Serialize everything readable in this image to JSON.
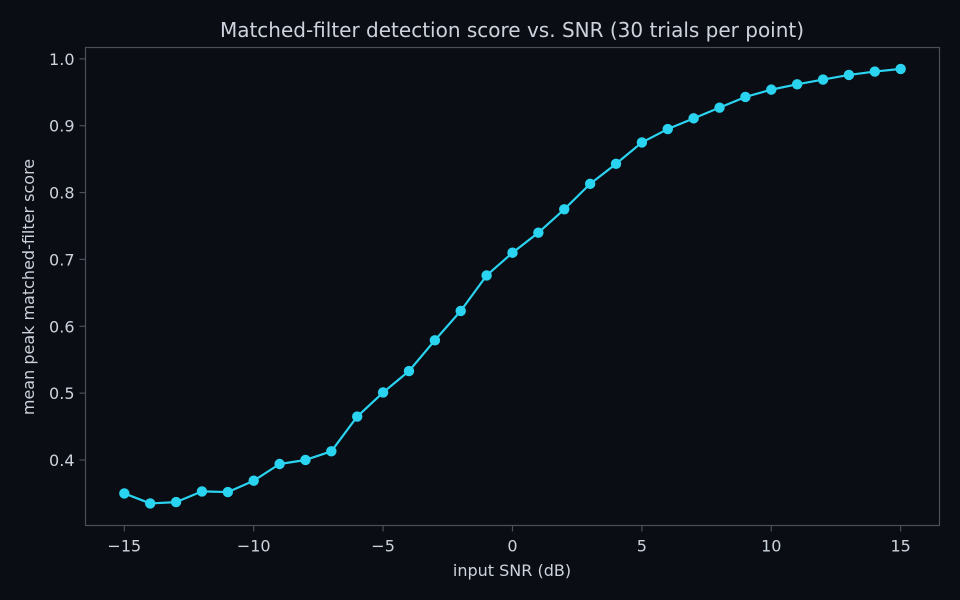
{
  "chart_data": {
    "type": "line",
    "title": "Matched-filter detection score vs. SNR (30 trials per point)",
    "xlabel": "input SNR (dB)",
    "ylabel": "mean peak matched-filter score",
    "xlim": [
      -16.5,
      16.5
    ],
    "ylim": [
      0.302,
      1.017
    ],
    "x_ticks": [
      -15,
      -10,
      -5,
      0,
      5,
      10,
      15
    ],
    "x_tick_labels": [
      "−15",
      "−10",
      "−5",
      "0",
      "5",
      "10",
      "15"
    ],
    "y_ticks": [
      0.4,
      0.5,
      0.6,
      0.7,
      0.8,
      0.9,
      1.0
    ],
    "y_tick_labels": [
      "0.4",
      "0.5",
      "0.6",
      "0.7",
      "0.8",
      "0.9",
      "1.0"
    ],
    "grid": false,
    "series": [
      {
        "color": "#2ad4f0",
        "marker": "circle",
        "x": [
          -15,
          -14,
          -13,
          -12,
          -11,
          -10,
          -9,
          -8,
          -7,
          -6,
          -5,
          -4,
          -3,
          -2,
          -1,
          0,
          1,
          2,
          3,
          4,
          5,
          6,
          7,
          8,
          9,
          10,
          11,
          12,
          13,
          14,
          15
        ],
        "y": [
          0.35,
          0.335,
          0.337,
          0.353,
          0.352,
          0.369,
          0.394,
          0.4,
          0.413,
          0.465,
          0.501,
          0.533,
          0.579,
          0.623,
          0.676,
          0.71,
          0.74,
          0.775,
          0.813,
          0.843,
          0.875,
          0.895,
          0.911,
          0.927,
          0.943,
          0.954,
          0.962,
          0.969,
          0.976,
          0.981,
          0.985
        ]
      }
    ]
  },
  "colors": {
    "background": "#0a0d14",
    "frame": "#4a4f59",
    "text": "#cdd3dc",
    "series": "#2ad4f0"
  }
}
